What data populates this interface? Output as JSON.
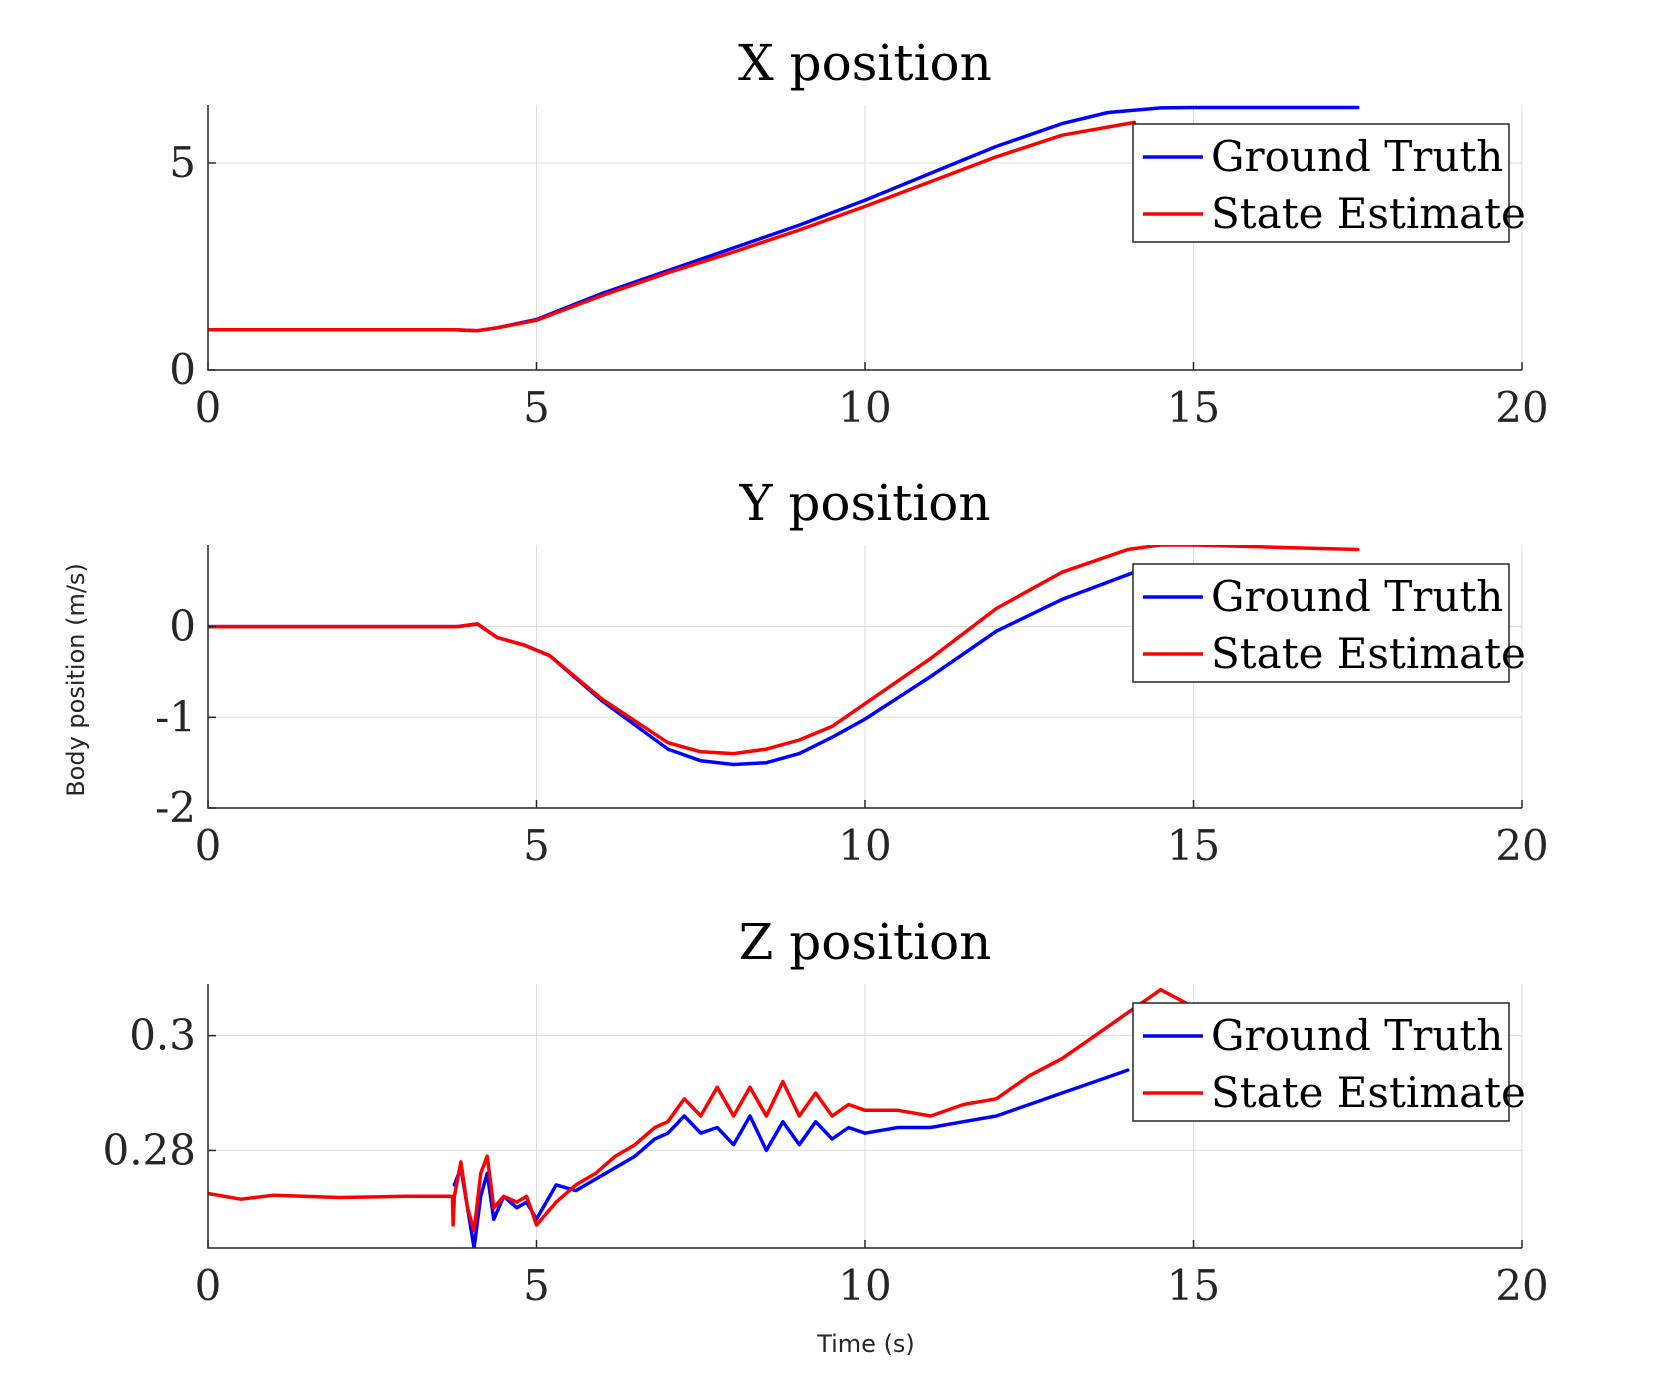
{
  "figure": {
    "ylabel": "Body position (m/s)",
    "xlabel": "Time (s)"
  },
  "chart_data": [
    {
      "type": "line",
      "title": "X position",
      "xlim": [
        0,
        20
      ],
      "ylim": [
        0,
        6.4
      ],
      "xticks": [
        0,
        5,
        10,
        15,
        20
      ],
      "yticks": [
        0,
        5
      ],
      "ytick_labels": [
        "0",
        "5"
      ],
      "grid": true,
      "legend": {
        "placement": "top-right"
      },
      "series": [
        {
          "name": "Ground Truth",
          "color": "#0000ff",
          "x": [
            0,
            1,
            2,
            3,
            3.75,
            4.1,
            4.4,
            5,
            6,
            7,
            8,
            9,
            10,
            11,
            12,
            13,
            13.7,
            14.5,
            15,
            16,
            17.5
          ],
          "y": [
            0.97,
            0.97,
            0.97,
            0.97,
            0.97,
            0.95,
            1.02,
            1.22,
            1.85,
            2.4,
            2.95,
            3.5,
            4.1,
            4.75,
            5.4,
            5.95,
            6.22,
            6.33,
            6.34,
            6.34,
            6.34
          ]
        },
        {
          "name": "State Estimate",
          "color": "#ff0000",
          "x": [
            0,
            1,
            2,
            3,
            3.75,
            4.1,
            4.4,
            5,
            6,
            7,
            8,
            9,
            10,
            11,
            12,
            13,
            14.1
          ],
          "y": [
            0.97,
            0.97,
            0.97,
            0.97,
            0.97,
            0.95,
            1.02,
            1.2,
            1.8,
            2.35,
            2.85,
            3.38,
            3.95,
            4.55,
            5.15,
            5.67,
            5.98
          ]
        }
      ]
    },
    {
      "type": "line",
      "title": "Y position",
      "xlim": [
        0,
        20
      ],
      "ylim": [
        -2,
        0.9
      ],
      "xticks": [
        0,
        5,
        10,
        15,
        20
      ],
      "yticks": [
        -2,
        -1,
        0
      ],
      "ytick_labels": [
        "-2",
        "-1",
        "0"
      ],
      "grid": true,
      "legend": {
        "placement": "top-right"
      },
      "series": [
        {
          "name": "Ground Truth",
          "color": "#0000ff",
          "x": [
            0,
            1,
            2,
            3,
            3.8,
            4.1,
            4.4,
            4.8,
            5.2,
            6,
            7,
            7.5,
            8,
            8.5,
            9,
            9.5,
            10,
            11,
            12,
            13,
            14.1
          ],
          "y": [
            0,
            0,
            0,
            0,
            0,
            0.03,
            -0.12,
            -0.2,
            -0.32,
            -0.82,
            -1.35,
            -1.48,
            -1.52,
            -1.5,
            -1.4,
            -1.22,
            -1.02,
            -0.55,
            -0.05,
            0.3,
            0.6
          ]
        },
        {
          "name": "State Estimate",
          "color": "#ff0000",
          "x": [
            0,
            1,
            2,
            3,
            3.8,
            4.1,
            4.4,
            4.8,
            5.2,
            6,
            7,
            7.5,
            8,
            8.5,
            9,
            9.5,
            10,
            11,
            12,
            13,
            14,
            14.5,
            15,
            16,
            17.5
          ],
          "y": [
            0,
            0,
            0,
            0,
            0,
            0.03,
            -0.12,
            -0.2,
            -0.32,
            -0.8,
            -1.28,
            -1.38,
            -1.4,
            -1.35,
            -1.25,
            -1.1,
            -0.85,
            -0.35,
            0.2,
            0.6,
            0.85,
            0.9,
            0.9,
            0.88,
            0.85
          ]
        }
      ]
    },
    {
      "type": "line",
      "title": "Z position",
      "xlim": [
        0,
        20
      ],
      "ylim": [
        0.263,
        0.309
      ],
      "xticks": [
        0,
        5,
        10,
        15,
        20
      ],
      "yticks": [
        0.28,
        0.3
      ],
      "ytick_labels": [
        "0.28",
        "0.3"
      ],
      "grid": true,
      "legend": {
        "placement": "top-right"
      },
      "series": [
        {
          "name": "Ground Truth",
          "color": "#0000ff",
          "x": [
            3.75,
            3.85,
            3.95,
            4.05,
            4.15,
            4.25,
            4.35,
            4.5,
            4.7,
            4.85,
            5.0,
            5.3,
            5.6,
            5.9,
            6.2,
            6.5,
            6.8,
            7.0,
            7.25,
            7.5,
            7.75,
            8.0,
            8.25,
            8.5,
            8.75,
            9.0,
            9.25,
            9.5,
            9.75,
            10.0,
            10.5,
            11.0,
            11.5,
            12.0,
            12.5,
            13.0,
            13.5,
            14.0
          ],
          "y": [
            0.274,
            0.277,
            0.27,
            0.263,
            0.272,
            0.276,
            0.268,
            0.272,
            0.27,
            0.271,
            0.268,
            0.274,
            0.273,
            0.275,
            0.277,
            0.279,
            0.282,
            0.283,
            0.286,
            0.283,
            0.284,
            0.281,
            0.286,
            0.28,
            0.285,
            0.281,
            0.285,
            0.282,
            0.284,
            0.283,
            0.284,
            0.284,
            0.285,
            0.286,
            0.288,
            0.29,
            0.292,
            0.294
          ]
        },
        {
          "name": "State Estimate",
          "color": "#ff0000",
          "x": [
            0,
            0.5,
            1,
            2,
            3,
            3.72,
            3.73,
            3.75,
            3.85,
            3.95,
            4.05,
            4.15,
            4.25,
            4.35,
            4.5,
            4.7,
            4.85,
            5.0,
            5.3,
            5.6,
            5.9,
            6.2,
            6.5,
            6.8,
            7.0,
            7.25,
            7.5,
            7.75,
            8.0,
            8.25,
            8.5,
            8.75,
            9.0,
            9.25,
            9.5,
            9.75,
            10.0,
            10.5,
            11.0,
            11.5,
            12.0,
            12.5,
            13.0,
            13.5,
            14.0,
            14.5,
            15.0,
            15.5
          ],
          "y": [
            0.2725,
            0.2715,
            0.2722,
            0.2718,
            0.272,
            0.272,
            0.267,
            0.272,
            0.278,
            0.27,
            0.266,
            0.276,
            0.279,
            0.27,
            0.272,
            0.271,
            0.272,
            0.267,
            0.271,
            0.274,
            0.276,
            0.279,
            0.281,
            0.284,
            0.285,
            0.289,
            0.286,
            0.291,
            0.286,
            0.291,
            0.286,
            0.292,
            0.286,
            0.29,
            0.286,
            0.288,
            0.287,
            0.287,
            0.286,
            0.288,
            0.289,
            0.293,
            0.296,
            0.3,
            0.304,
            0.308,
            0.305,
            0.305
          ]
        }
      ]
    }
  ]
}
